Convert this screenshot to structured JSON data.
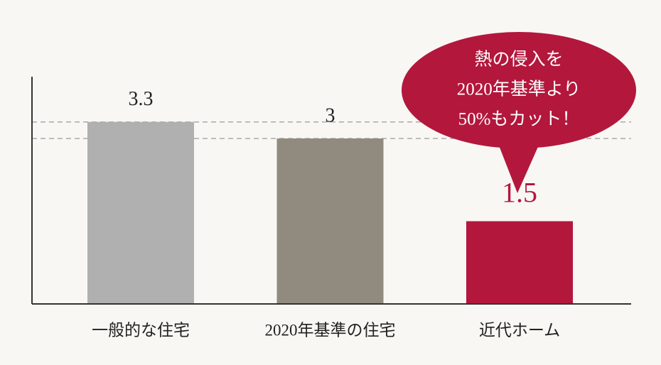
{
  "chart_data": {
    "type": "bar",
    "categories": [
      "一般的な住宅",
      "2020年基準の住宅",
      "近代ホーム"
    ],
    "values": [
      3.3,
      3.0,
      1.5
    ],
    "colors": [
      "#b0b0b0",
      "#918b7f",
      "#b3173c"
    ],
    "ylim": [
      0,
      4.12
    ],
    "reference_lines": true,
    "annotation": [
      "熱の侵入を",
      "2020年基準より",
      "50%もカット！"
    ]
  }
}
